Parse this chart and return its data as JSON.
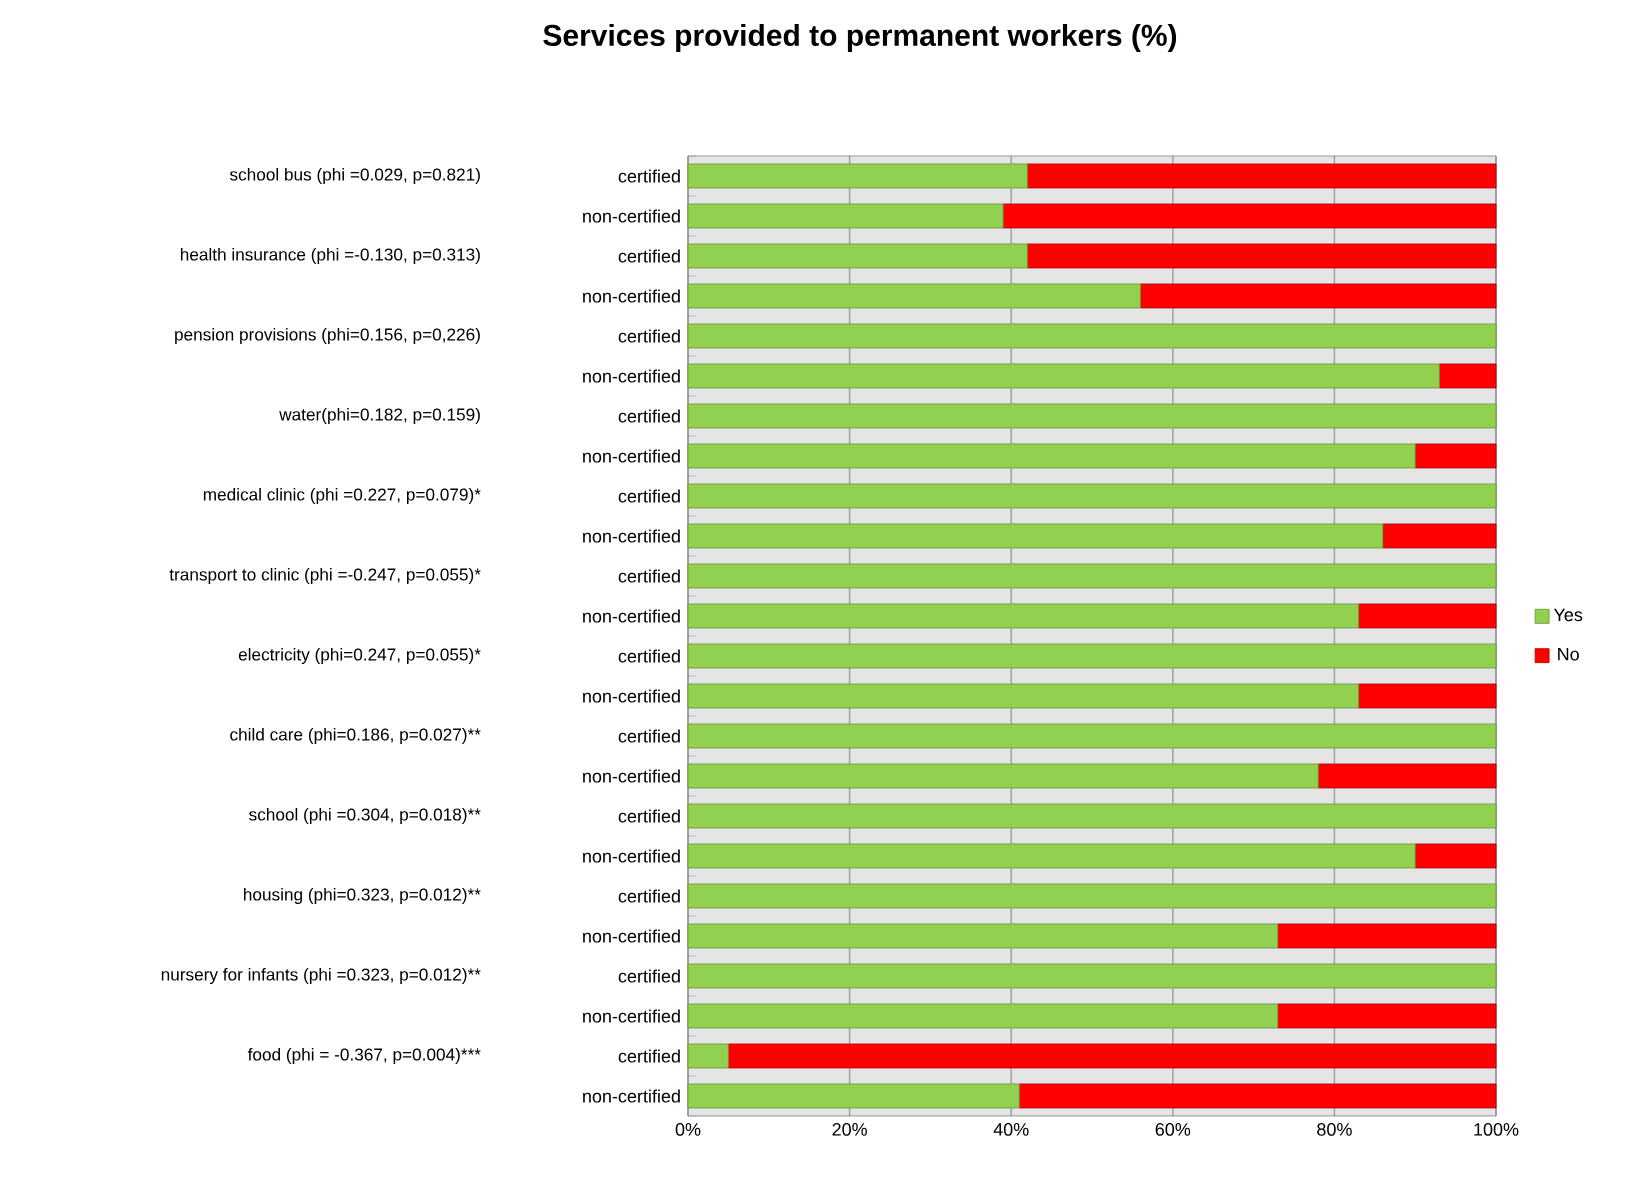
{
  "chart_data": {
    "type": "bar",
    "orientation": "horizontal",
    "stacked": true,
    "title": "Services provided to permanent workers (%)",
    "categories": [
      "certified",
      "non-certified",
      "certified",
      "non-certified",
      "certified",
      "non-certified",
      "certified",
      "non-certified",
      "certified",
      "non-certified",
      "certified",
      "non-certified",
      "certified",
      "non-certified",
      "certified",
      "non-certified",
      "certified",
      "non-certified",
      "certified",
      "non-certified",
      "certified",
      "non-certified",
      "certified",
      "non-certified"
    ],
    "series": [
      {
        "name": "Yes",
        "color": "#92d050",
        "values": [
          42,
          39,
          42,
          56,
          100,
          93,
          100,
          90,
          100,
          86,
          100,
          83,
          100,
          83,
          100,
          78,
          100,
          90,
          100,
          73,
          100,
          73,
          5,
          41
        ]
      },
      {
        "name": "No",
        "color": "#ff0000",
        "values": [
          58,
          61,
          58,
          44,
          0,
          7,
          0,
          10,
          0,
          14,
          0,
          17,
          0,
          17,
          0,
          22,
          0,
          10,
          0,
          27,
          0,
          27,
          95,
          59
        ]
      }
    ],
    "xlim": [
      0,
      100
    ],
    "xticks": [
      {
        "value": 0,
        "label": "0%"
      },
      {
        "value": 20,
        "label": "20%"
      },
      {
        "value": 40,
        "label": "40%"
      },
      {
        "value": 60,
        "label": "60%"
      },
      {
        "value": 80,
        "label": "80%"
      },
      {
        "value": 100,
        "label": "100%"
      }
    ],
    "grid": "x",
    "legend": "right",
    "annotations": [
      "school bus (phi =0.029, p=0.821)",
      "health insurance (phi =-0.130, p=0.313)",
      "pension provisions (phi=0.156, p=0,226)",
      "water(phi=0.182, p=0.159)",
      "medical clinic (phi =0.227, p=0.079)*",
      "transport to clinic (phi =-0.247, p=0.055)*",
      "electricity (phi=0.247, p=0.055)*",
      "child care (phi=0.186, p=0.027)**",
      "school  (phi =0.304, p=0.018)**",
      "housing  (phi=0.323, p=0.012)**",
      "nursery for infants (phi =0.323, p=0.012)**",
      "food (phi = -0.367, p=0.004)***"
    ]
  }
}
